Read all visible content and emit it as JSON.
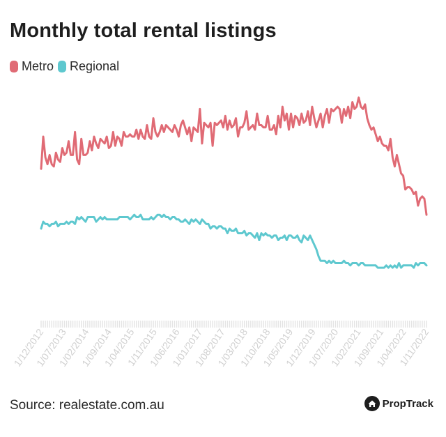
{
  "chart_data": {
    "type": "line",
    "title": "Monthly total rental listings",
    "xlabel": "",
    "ylabel": "",
    "grid": false,
    "legend": "top-left",
    "ylim": [
      0,
      100
    ],
    "x_start": "1/12/2012",
    "x_end": "1/12/2022",
    "tick_labels": [
      "1/12/2012",
      "1/07/2013",
      "1/02/2014",
      "1/09/2014",
      "1/04/2015",
      "1/11/2015",
      "1/06/2016",
      "1/01/2017",
      "1/08/2017",
      "1/03/2018",
      "1/10/2018",
      "1/05/2019",
      "1/12/2019",
      "1/07/2020",
      "1/02/2021",
      "1/09/2021",
      "1/04/2022",
      "1/11/2022"
    ],
    "series": [
      {
        "name": "Metro",
        "color": "#e06b75",
        "values": [
          66,
          80,
          71,
          68,
          72,
          68,
          67,
          73,
          70,
          69,
          75,
          72,
          73,
          78,
          72,
          72,
          82,
          70,
          68,
          79,
          72,
          72,
          73,
          78,
          74,
          80,
          77,
          75,
          79,
          78,
          77,
          80,
          75,
          76,
          82,
          76,
          80,
          79,
          76,
          82,
          80,
          80,
          81,
          80,
          80,
          83,
          79,
          83,
          80,
          79,
          85,
          80,
          79,
          88,
          82,
          80,
          82,
          85,
          82,
          85,
          84,
          83,
          82,
          85,
          83,
          80,
          85,
          87,
          84,
          81,
          84,
          78,
          84,
          83,
          82,
          92,
          77,
          86,
          85,
          84,
          86,
          76,
          86,
          85,
          86,
          87,
          84,
          89,
          83,
          87,
          84,
          85,
          88,
          80,
          84,
          84,
          86,
          91,
          83,
          84,
          85,
          83,
          90,
          85,
          85,
          84,
          84,
          89,
          83,
          83,
          85,
          81,
          89,
          84,
          93,
          87,
          90,
          83,
          90,
          84,
          89,
          88,
          85,
          90,
          86,
          87,
          91,
          85,
          93,
          88,
          84,
          87,
          90,
          84,
          89,
          92,
          86,
          92,
          91,
          92,
          93,
          92,
          86,
          92,
          89,
          93,
          88,
          95,
          92,
          93,
          97,
          93,
          92,
          94,
          88,
          85,
          83,
          84,
          81,
          78,
          80,
          77,
          76,
          76,
          74,
          79,
          71,
          67,
          72,
          68,
          64,
          63,
          57,
          58,
          58,
          57,
          55,
          56,
          50,
          53,
          54,
          53,
          46
        ]
      },
      {
        "name": "Regional",
        "color": "#5ec8cf",
        "values": [
          40,
          43,
          42,
          42,
          41,
          42,
          42,
          43,
          41,
          42,
          42,
          42,
          43,
          42,
          43,
          43,
          42,
          45,
          44,
          45,
          44,
          43,
          45,
          45,
          45,
          45,
          43,
          44,
          45,
          44,
          45,
          44,
          44,
          44,
          44,
          44,
          44,
          45,
          45,
          45,
          45,
          45,
          44,
          45,
          46,
          45,
          45,
          46,
          44,
          44,
          44,
          44,
          45,
          44,
          45,
          46,
          46,
          45,
          46,
          45,
          45,
          44,
          45,
          45,
          44,
          44,
          43,
          43,
          44,
          43,
          42,
          44,
          43,
          44,
          43,
          42,
          44,
          43,
          42,
          42,
          40,
          41,
          41,
          40,
          41,
          41,
          40,
          40,
          38,
          40,
          39,
          39,
          40,
          38,
          38,
          38,
          39,
          37,
          38,
          38,
          37,
          36,
          38,
          35,
          38,
          37,
          38,
          37,
          37,
          36,
          37,
          37,
          35,
          36,
          36,
          37,
          35,
          37,
          37,
          36,
          36,
          37,
          35,
          34,
          37,
          36,
          35,
          37,
          35,
          33,
          31,
          28,
          26,
          26,
          26,
          25,
          26,
          25,
          26,
          25,
          25,
          25,
          25,
          26,
          25,
          25,
          24,
          25,
          25,
          25,
          24,
          25,
          25,
          24,
          24,
          24,
          24,
          24,
          24,
          23,
          23,
          23,
          23,
          24,
          23,
          24,
          23,
          24,
          23,
          25,
          23,
          24,
          24,
          24,
          24,
          24,
          23,
          25,
          24,
          25,
          25,
          25,
          24
        ]
      }
    ]
  },
  "footer": {
    "source": "Source: realestate.com.au",
    "brand": "PropTrack"
  }
}
